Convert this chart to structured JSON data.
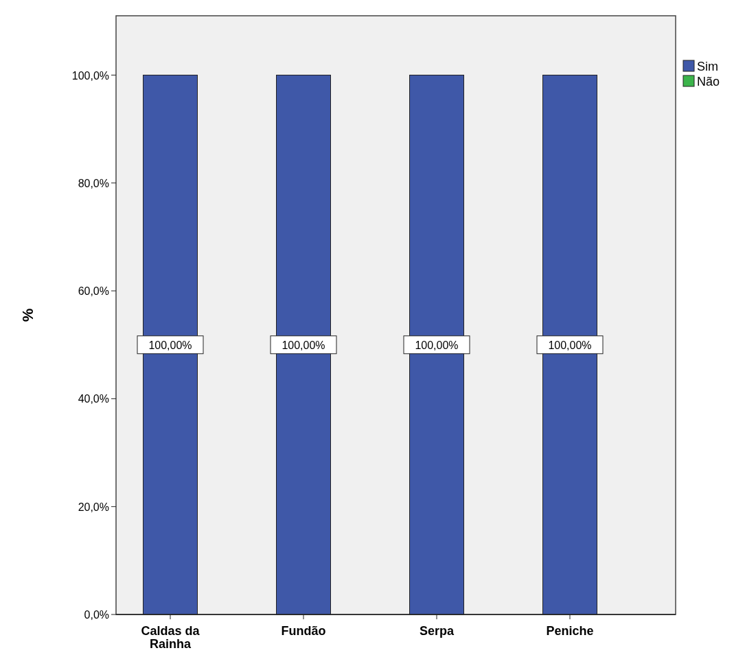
{
  "chart_data": {
    "type": "bar",
    "stacked": true,
    "ylabel": "%",
    "categories": [
      "Caldas da Rainha",
      "Fundão",
      "Serpa",
      "Peniche"
    ],
    "series": [
      {
        "name": "Sim",
        "color": "#3f58a8",
        "values": [
          100,
          100,
          100,
          100
        ],
        "value_labels": [
          "100,00%",
          "100,00%",
          "100,00%",
          "100,00%"
        ]
      },
      {
        "name": "Não",
        "color": "#3cb44b",
        "values": [
          0,
          0,
          0,
          0
        ]
      }
    ],
    "ylim": [
      0,
      111
    ],
    "yticks": [
      {
        "value": 0,
        "label": "0,0%"
      },
      {
        "value": 20,
        "label": "20,0%"
      },
      {
        "value": 40,
        "label": "40,0%"
      },
      {
        "value": 60,
        "label": "60,0%"
      },
      {
        "value": 80,
        "label": "80,0%"
      },
      {
        "value": 100,
        "label": "100,0%"
      }
    ],
    "grid": false,
    "legend": "top right"
  }
}
